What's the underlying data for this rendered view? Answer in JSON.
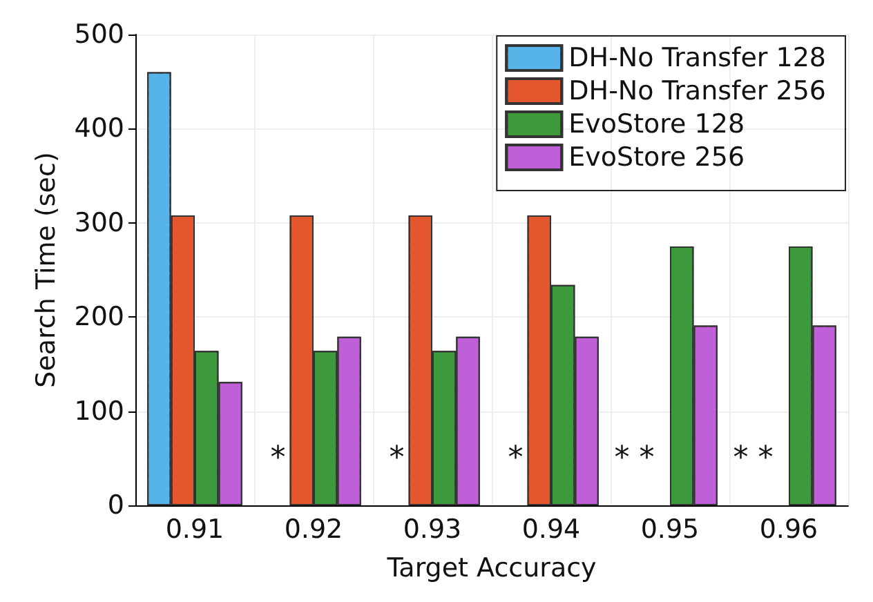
{
  "chart_data": {
    "type": "bar",
    "xlabel": "Target Accuracy",
    "ylabel": "Search Time (sec)",
    "categories": [
      "0.91",
      "0.92",
      "0.93",
      "0.94",
      "0.95",
      "0.96"
    ],
    "series": [
      {
        "name": "DH-No Transfer 128",
        "color": "#56b4e9",
        "values": [
          460,
          null,
          null,
          null,
          null,
          null
        ]
      },
      {
        "name": "DH-No Transfer 256",
        "color": "#e4572e",
        "values": [
          308,
          308,
          308,
          308,
          null,
          null
        ]
      },
      {
        "name": "EvoStore 128",
        "color": "#3c9a3c",
        "values": [
          164,
          164,
          164,
          234,
          275,
          275
        ]
      },
      {
        "name": "EvoStore 256",
        "color": "#c060d8",
        "values": [
          131,
          179,
          179,
          179,
          191,
          191
        ]
      }
    ],
    "ylim": [
      0,
      500
    ],
    "yticks": [
      0,
      100,
      200,
      300,
      400,
      500
    ],
    "grid": true,
    "legend": "top right",
    "annotations": [
      {
        "text": "*",
        "x": "0.92",
        "y": 50
      },
      {
        "text": "*",
        "x": "0.93",
        "y": 50
      },
      {
        "text": "*",
        "x": "0.94",
        "y": 50
      },
      {
        "text": "* *",
        "x": "0.95",
        "y": 50
      },
      {
        "text": "* *",
        "x": "0.96",
        "y": 50
      }
    ]
  }
}
